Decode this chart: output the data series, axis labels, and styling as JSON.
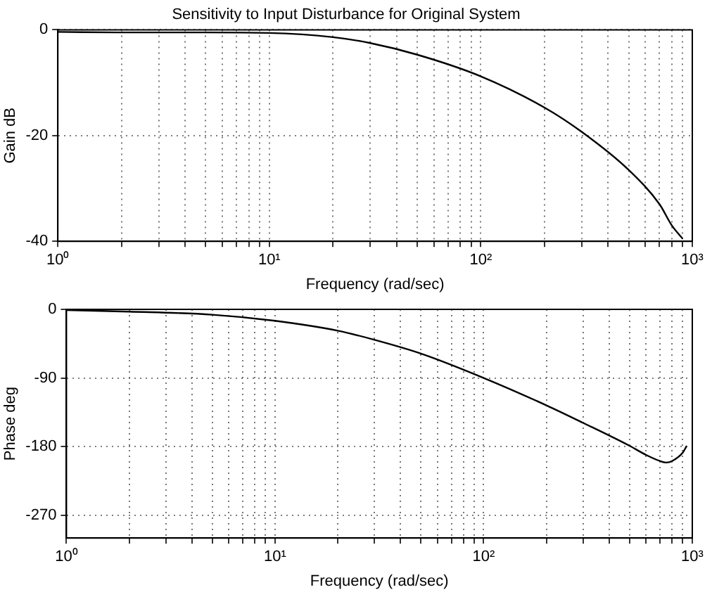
{
  "chart_data": [
    {
      "type": "line",
      "title": "Sensitivity to Input Disturbance for Original System",
      "xlabel": "Frequency (rad/sec)",
      "ylabel": "Gain dB",
      "log": "x",
      "grid": true,
      "line_style": "solid",
      "marker": "none",
      "x": [
        1,
        2,
        5,
        10,
        20,
        30,
        50,
        100,
        200,
        300,
        500,
        700,
        800,
        900
      ],
      "series": [
        {
          "color": "#000000",
          "values": [
            -0.4,
            -0.5,
            -0.5,
            -0.6,
            -1.4,
            -2.5,
            -4.7,
            -8.8,
            -14.7,
            -19.3,
            -26.5,
            -33,
            -37,
            -39.5
          ]
        }
      ],
      "xlim": [
        1,
        1000
      ],
      "xticks": [
        {
          "value": 1,
          "label": "10⁰"
        },
        {
          "value": 2,
          "label": null
        },
        {
          "value": 3,
          "label": null
        },
        {
          "value": 4,
          "label": null
        },
        {
          "value": 5,
          "label": null
        },
        {
          "value": 6,
          "label": null
        },
        {
          "value": 7,
          "label": null
        },
        {
          "value": 8,
          "label": null
        },
        {
          "value": 9,
          "label": null
        },
        {
          "value": 10,
          "label": "10¹"
        },
        {
          "value": 20,
          "label": null
        },
        {
          "value": 30,
          "label": null
        },
        {
          "value": 40,
          "label": null
        },
        {
          "value": 50,
          "label": null
        },
        {
          "value": 60,
          "label": null
        },
        {
          "value": 70,
          "label": null
        },
        {
          "value": 80,
          "label": null
        },
        {
          "value": 90,
          "label": null
        },
        {
          "value": 100,
          "label": "10²"
        },
        {
          "value": 200,
          "label": null
        },
        {
          "value": 300,
          "label": null
        },
        {
          "value": 400,
          "label": null
        },
        {
          "value": 500,
          "label": null
        },
        {
          "value": 600,
          "label": null
        },
        {
          "value": 700,
          "label": null
        },
        {
          "value": 800,
          "label": null
        },
        {
          "value": 900,
          "label": null
        },
        {
          "value": 1000,
          "label": "10³"
        }
      ],
      "ylim": [
        -40,
        0
      ],
      "yticks": [
        -40,
        -20,
        0
      ]
    },
    {
      "type": "line",
      "xlabel": "Frequency (rad/sec)",
      "ylabel": "Phase deg",
      "log": "x",
      "grid": true,
      "line_style": "solid",
      "marker": "none",
      "x": [
        1,
        2,
        5,
        10,
        20,
        30,
        50,
        100,
        200,
        300,
        500,
        600,
        700,
        750,
        800,
        900,
        940
      ],
      "series": [
        {
          "color": "#000000",
          "values": [
            -1,
            -3,
            -7,
            -15,
            -28,
            -40,
            -58,
            -90,
            -126,
            -149,
            -179,
            -191,
            -199,
            -201,
            -199,
            -188,
            -179
          ]
        }
      ],
      "xlim": [
        1,
        1000
      ],
      "xticks": [
        {
          "value": 1,
          "label": "10⁰"
        },
        {
          "value": 2,
          "label": null
        },
        {
          "value": 3,
          "label": null
        },
        {
          "value": 4,
          "label": null
        },
        {
          "value": 5,
          "label": null
        },
        {
          "value": 6,
          "label": null
        },
        {
          "value": 7,
          "label": null
        },
        {
          "value": 8,
          "label": null
        },
        {
          "value": 9,
          "label": null
        },
        {
          "value": 10,
          "label": "10¹"
        },
        {
          "value": 20,
          "label": null
        },
        {
          "value": 30,
          "label": null
        },
        {
          "value": 40,
          "label": null
        },
        {
          "value": 50,
          "label": null
        },
        {
          "value": 60,
          "label": null
        },
        {
          "value": 70,
          "label": null
        },
        {
          "value": 80,
          "label": null
        },
        {
          "value": 90,
          "label": null
        },
        {
          "value": 100,
          "label": "10²"
        },
        {
          "value": 200,
          "label": null
        },
        {
          "value": 300,
          "label": null
        },
        {
          "value": 400,
          "label": null
        },
        {
          "value": 500,
          "label": null
        },
        {
          "value": 600,
          "label": null
        },
        {
          "value": 700,
          "label": null
        },
        {
          "value": 800,
          "label": null
        },
        {
          "value": 900,
          "label": null
        },
        {
          "value": 1000,
          "label": "10³"
        }
      ],
      "ylim": [
        -300,
        0
      ],
      "yticks": [
        -270,
        -180,
        -90,
        0
      ]
    }
  ]
}
